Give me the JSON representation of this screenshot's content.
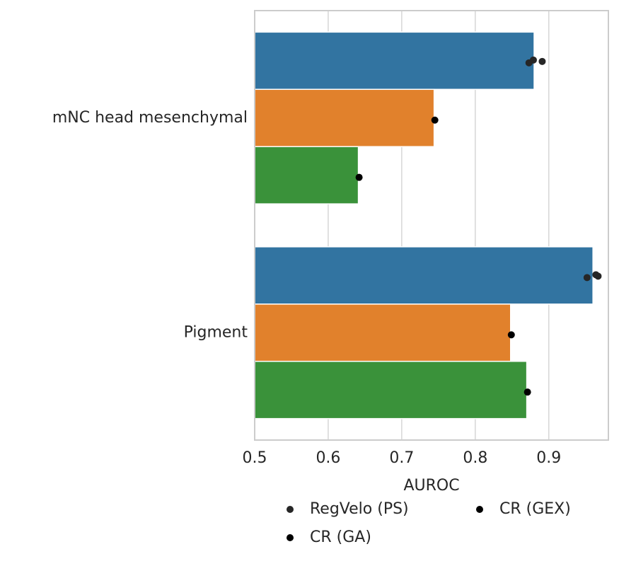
{
  "chart_data": {
    "type": "bar",
    "orientation": "horizontal",
    "x_label": "AUROC",
    "categories": [
      "mNC head mesenchymal",
      "Pigment"
    ],
    "series": [
      {
        "name": "RegVelo (PS)",
        "color": "#3274a1",
        "point_color": "#262626",
        "values": [
          0.88,
          0.96
        ],
        "points": [
          [
            0.873,
            0.879,
            0.891
          ],
          [
            0.952,
            0.964,
            0.967
          ]
        ]
      },
      {
        "name": "CR (GA)",
        "color": "#e1812c",
        "point_color": "#000000",
        "values": [
          0.744,
          0.848
        ],
        "points": [
          [
            0.745
          ],
          [
            0.849
          ]
        ]
      },
      {
        "name": "CR (GEX)",
        "color": "#3a923a",
        "point_color": "#000000",
        "values": [
          0.641,
          0.87
        ],
        "points": [
          [
            0.642
          ],
          [
            0.871
          ]
        ]
      }
    ],
    "xlim": [
      0.5,
      0.981
    ],
    "xticks": [
      0.5,
      0.6,
      0.7,
      0.8,
      0.9
    ],
    "grid": true,
    "legend": "below"
  }
}
